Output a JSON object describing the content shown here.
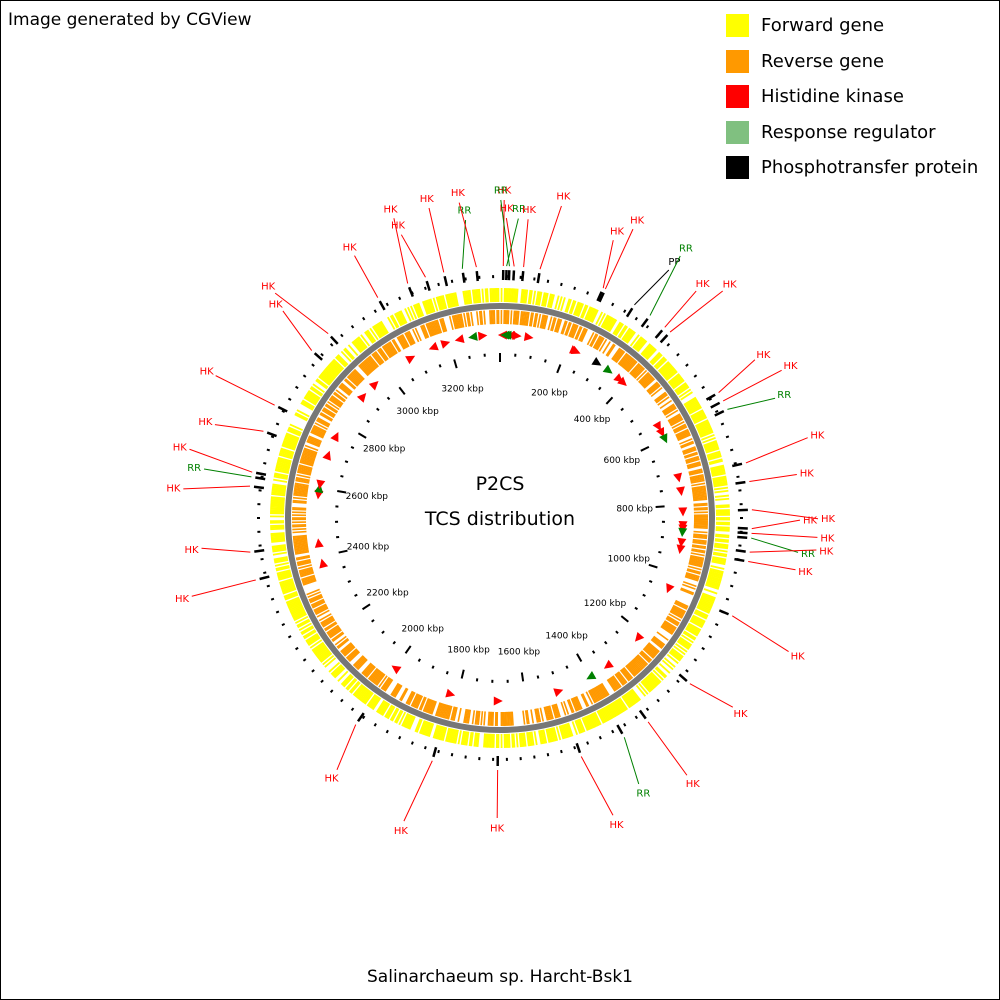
{
  "credit": "Image generated by CGView",
  "legend": [
    {
      "label": "Forward gene",
      "color": "#ffff00"
    },
    {
      "label": "Reverse gene",
      "color": "#ff9900"
    },
    {
      "label": "Histidine kinase",
      "color": "#ff0000"
    },
    {
      "label": "Response regulator",
      "color": "#80c080"
    },
    {
      "label": "Phosphotransfer protein",
      "color": "#000000"
    }
  ],
  "center": {
    "line1": "P2CS",
    "line2": "TCS distribution"
  },
  "organism": "Salinarchaeum sp. Harcht-Bsk1",
  "genome_kbp": 3350,
  "ruler_labels": [
    {
      "kbp": 200,
      "text": "200 kbp"
    },
    {
      "kbp": 400,
      "text": "400 kbp"
    },
    {
      "kbp": 600,
      "text": "600 kbp"
    },
    {
      "kbp": 800,
      "text": "800 kbp"
    },
    {
      "kbp": 1000,
      "text": "1000 kbp"
    },
    {
      "kbp": 1200,
      "text": "1200 kbp"
    },
    {
      "kbp": 1400,
      "text": "1400 kbp"
    },
    {
      "kbp": 1600,
      "text": "1600 kbp"
    },
    {
      "kbp": 1800,
      "text": "1800 kbp"
    },
    {
      "kbp": 2000,
      "text": "2000 kbp"
    },
    {
      "kbp": 2200,
      "text": "2200 kbp"
    },
    {
      "kbp": 2400,
      "text": "2400 kbp"
    },
    {
      "kbp": 2600,
      "text": "2600 kbp"
    },
    {
      "kbp": 2800,
      "text": "2800 kbp"
    },
    {
      "kbp": 3000,
      "text": "3000 kbp"
    },
    {
      "kbp": 3200,
      "text": "3200 kbp"
    }
  ],
  "features": [
    {
      "label": "HK",
      "type": "HK",
      "kbp": 30,
      "strand": "reverse"
    },
    {
      "label": "HK",
      "type": "HK",
      "kbp": 7,
      "strand": "reverse"
    },
    {
      "label": "RR",
      "type": "RR",
      "kbp": 14,
      "strand": "reverse"
    },
    {
      "label": "RR",
      "type": "RR",
      "kbp": 20,
      "strand": "reverse"
    },
    {
      "label": "HK",
      "type": "HK",
      "kbp": 50,
      "strand": "forward"
    },
    {
      "label": "HK",
      "type": "HK",
      "kbp": 85,
      "strand": "forward"
    },
    {
      "label": "HK",
      "type": "HK",
      "kbp": 225,
      "strand": "forward"
    },
    {
      "label": "HK",
      "type": "HK",
      "kbp": 230,
      "strand": "forward"
    },
    {
      "label": "PP",
      "type": "PP",
      "kbp": 300,
      "strand": "forward"
    },
    {
      "label": "RR",
      "type": "RR",
      "kbp": 340,
      "strand": "forward"
    },
    {
      "label": "HK",
      "type": "HK",
      "kbp": 380,
      "strand": "forward"
    },
    {
      "label": "HK",
      "type": "HK",
      "kbp": 395,
      "strand": "forward"
    },
    {
      "label": "HK",
      "type": "HK",
      "kbp": 560,
      "strand": "forward"
    },
    {
      "label": "HK",
      "type": "HK",
      "kbp": 580,
      "strand": "forward"
    },
    {
      "label": "RR",
      "type": "RR",
      "kbp": 600,
      "strand": "forward"
    },
    {
      "label": "HK",
      "type": "HK",
      "kbp": 720,
      "strand": "forward"
    },
    {
      "label": "HK",
      "type": "HK",
      "kbp": 760,
      "strand": "forward"
    },
    {
      "label": "HK",
      "type": "HK",
      "kbp": 820,
      "strand": "forward"
    },
    {
      "label": "HK",
      "type": "HK",
      "kbp": 860,
      "strand": "forward"
    },
    {
      "label": "HK",
      "type": "HK",
      "kbp": 870,
      "strand": "forward"
    },
    {
      "label": "RR",
      "type": "RR",
      "kbp": 880,
      "strand": "forward"
    },
    {
      "label": "HK",
      "type": "HK",
      "kbp": 910,
      "strand": "forward"
    },
    {
      "label": "HK",
      "type": "HK",
      "kbp": 930,
      "strand": "forward"
    },
    {
      "label": "HK",
      "type": "HK",
      "kbp": 1050,
      "strand": "forward"
    },
    {
      "label": "HK",
      "type": "HK",
      "kbp": 1220,
      "strand": "forward"
    },
    {
      "label": "HK",
      "type": "HK",
      "kbp": 1340,
      "strand": "forward"
    },
    {
      "label": "RR",
      "type": "RR",
      "kbp": 1400,
      "strand": "forward"
    },
    {
      "label": "HK",
      "type": "HK",
      "kbp": 1500,
      "strand": "reverse"
    },
    {
      "label": "HK",
      "type": "HK",
      "kbp": 1680,
      "strand": "reverse"
    },
    {
      "label": "HK",
      "type": "HK",
      "kbp": 1820,
      "strand": "reverse"
    },
    {
      "label": "HK",
      "type": "HK",
      "kbp": 2000,
      "strand": "forward"
    },
    {
      "label": "HK",
      "type": "HK",
      "kbp": 2380,
      "strand": "forward"
    },
    {
      "label": "HK",
      "type": "HK",
      "kbp": 2440,
      "strand": "forward"
    },
    {
      "label": "HK",
      "type": "HK",
      "kbp": 2580,
      "strand": "reverse"
    },
    {
      "label": "RR",
      "type": "RR",
      "kbp": 2600,
      "strand": "forward"
    },
    {
      "label": "HK",
      "type": "HK",
      "kbp": 2610,
      "strand": "reverse"
    },
    {
      "label": "HK",
      "type": "HK",
      "kbp": 2700,
      "strand": "forward"
    },
    {
      "label": "HK",
      "type": "HK",
      "kbp": 2760,
      "strand": "forward"
    },
    {
      "label": "HK",
      "type": "HK",
      "kbp": 2900,
      "strand": "forward"
    },
    {
      "label": "HK",
      "type": "HK",
      "kbp": 2950,
      "strand": "forward"
    },
    {
      "label": "HK",
      "type": "HK",
      "kbp": 3080,
      "strand": "forward"
    },
    {
      "label": "HK",
      "type": "HK",
      "kbp": 3150,
      "strand": "reverse"
    },
    {
      "label": "HK",
      "type": "HK",
      "kbp": 3190,
      "strand": "forward"
    },
    {
      "label": "HK",
      "type": "HK",
      "kbp": 3230,
      "strand": "reverse"
    },
    {
      "label": "RR",
      "type": "RR",
      "kbp": 3270,
      "strand": "reverse"
    },
    {
      "label": "HK",
      "type": "HK",
      "kbp": 3300,
      "strand": "forward"
    }
  ]
}
